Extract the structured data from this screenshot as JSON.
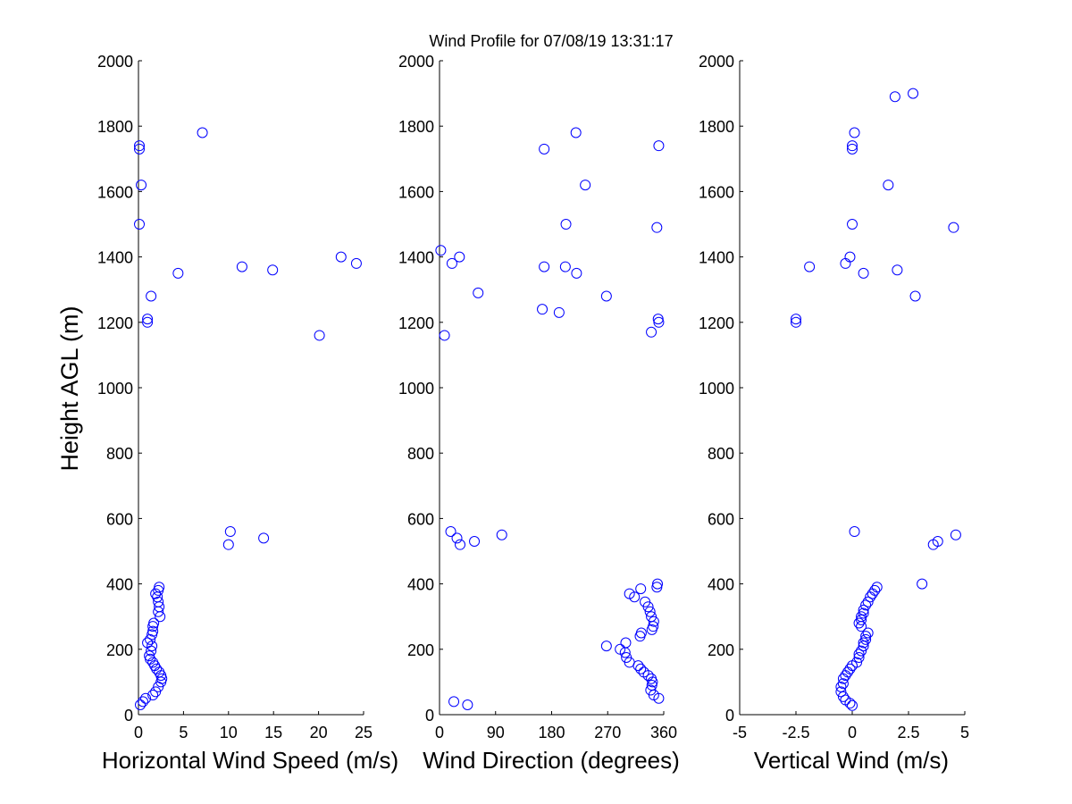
{
  "figure": {
    "title": "Wind Profile for  07/08/19 13:31:17",
    "ylabel": "Height AGL (m)",
    "marker_color": "#0000ff"
  },
  "chart_data": [
    {
      "type": "scatter",
      "xlabel": "Horizontal Wind Speed (m/s)",
      "ylabel": "Height AGL (m)",
      "xlim": [
        0,
        25
      ],
      "ylim": [
        0,
        2000
      ],
      "xticks": [
        "0",
        "5",
        "10",
        "15",
        "20",
        "25"
      ],
      "yticks": [
        "0",
        "200",
        "400",
        "600",
        "800",
        "1000",
        "1200",
        "1400",
        "1600",
        "1800",
        "2000"
      ],
      "series": [
        {
          "points": [
            [
              0.1,
              1740
            ],
            [
              0.1,
              1730
            ],
            [
              0.3,
              1620
            ],
            [
              0.1,
              1500
            ],
            [
              7.1,
              1780
            ],
            [
              11.5,
              1370
            ],
            [
              14.9,
              1360
            ],
            [
              22.5,
              1400
            ],
            [
              24.2,
              1380
            ],
            [
              4.4,
              1350
            ],
            [
              1.4,
              1280
            ],
            [
              1.0,
              1210
            ],
            [
              1.0,
              1200
            ],
            [
              20.1,
              1160
            ],
            [
              10.2,
              560
            ],
            [
              10.0,
              520
            ],
            [
              13.9,
              540
            ],
            [
              2.3,
              390
            ],
            [
              2.2,
              380
            ],
            [
              1.9,
              370
            ],
            [
              2.1,
              360
            ],
            [
              2.2,
              345
            ],
            [
              2.3,
              330
            ],
            [
              2.2,
              315
            ],
            [
              2.4,
              300
            ],
            [
              1.7,
              280
            ],
            [
              1.6,
              270
            ],
            [
              1.6,
              255
            ],
            [
              1.5,
              245
            ],
            [
              1.3,
              230
            ],
            [
              1.0,
              220
            ],
            [
              1.5,
              210
            ],
            [
              1.4,
              195
            ],
            [
              1.2,
              180
            ],
            [
              1.3,
              170
            ],
            [
              1.6,
              160
            ],
            [
              1.8,
              150
            ],
            [
              2.0,
              140
            ],
            [
              2.3,
              130
            ],
            [
              2.5,
              120
            ],
            [
              2.6,
              110
            ],
            [
              2.5,
              100
            ],
            [
              2.2,
              85
            ],
            [
              1.9,
              70
            ],
            [
              1.6,
              60
            ],
            [
              0.8,
              50
            ],
            [
              0.5,
              40
            ],
            [
              0.2,
              30
            ]
          ]
        }
      ]
    },
    {
      "type": "scatter",
      "xlabel": "Wind Direction (degrees)",
      "xlim": [
        0,
        360
      ],
      "ylim": [
        0,
        2000
      ],
      "xticks": [
        "0",
        "90",
        "180",
        "270",
        "360"
      ],
      "yticks": [
        "0",
        "200",
        "400",
        "600",
        "800",
        "1000",
        "1200",
        "1400",
        "1600",
        "1800",
        "2000"
      ],
      "series": [
        {
          "points": [
            [
              168,
              1730
            ],
            [
              352,
              1740
            ],
            [
              219,
              1780
            ],
            [
              234,
              1620
            ],
            [
              203,
              1500
            ],
            [
              349,
              1490
            ],
            [
              2,
              1420
            ],
            [
              20,
              1380
            ],
            [
              32,
              1400
            ],
            [
              168,
              1370
            ],
            [
              202,
              1370
            ],
            [
              220,
              1350
            ],
            [
              62,
              1290
            ],
            [
              268,
              1280
            ],
            [
              165,
              1240
            ],
            [
              192,
              1230
            ],
            [
              351,
              1210
            ],
            [
              352,
              1200
            ],
            [
              340,
              1170
            ],
            [
              8,
              1160
            ],
            [
              100,
              550
            ],
            [
              18,
              560
            ],
            [
              28,
              540
            ],
            [
              33,
              520
            ],
            [
              56,
              530
            ],
            [
              350,
              400
            ],
            [
              349,
              390
            ],
            [
              323,
              385
            ],
            [
              305,
              370
            ],
            [
              313,
              360
            ],
            [
              330,
              345
            ],
            [
              335,
              330
            ],
            [
              338,
              315
            ],
            [
              340,
              300
            ],
            [
              344,
              285
            ],
            [
              343,
              270
            ],
            [
              341,
              260
            ],
            [
              324,
              250
            ],
            [
              322,
              240
            ],
            [
              299,
              220
            ],
            [
              268,
              210
            ],
            [
              290,
              200
            ],
            [
              298,
              190
            ],
            [
              300,
              175
            ],
            [
              305,
              160
            ],
            [
              319,
              150
            ],
            [
              323,
              140
            ],
            [
              328,
              130
            ],
            [
              335,
              120
            ],
            [
              340,
              110
            ],
            [
              342,
              100
            ],
            [
              341,
              90
            ],
            [
              339,
              75
            ],
            [
              344,
              60
            ],
            [
              352,
              50
            ],
            [
              23,
              40
            ],
            [
              45,
              30
            ]
          ]
        }
      ]
    },
    {
      "type": "scatter",
      "xlabel": "Vertical Wind (m/s)",
      "xlim": [
        -5,
        5
      ],
      "ylim": [
        0,
        2000
      ],
      "xticks": [
        "-5",
        "-2.5",
        "0",
        "2.5",
        "5"
      ],
      "yticks": [
        "0",
        "200",
        "400",
        "600",
        "800",
        "1000",
        "1200",
        "1400",
        "1600",
        "1800",
        "2000"
      ],
      "series": [
        {
          "points": [
            [
              2.7,
              1900
            ],
            [
              1.9,
              1890
            ],
            [
              0.1,
              1780
            ],
            [
              0.0,
              1740
            ],
            [
              0.0,
              1730
            ],
            [
              1.6,
              1620
            ],
            [
              0.0,
              1500
            ],
            [
              4.5,
              1490
            ],
            [
              -1.9,
              1370
            ],
            [
              -0.3,
              1380
            ],
            [
              -0.1,
              1400
            ],
            [
              2.0,
              1360
            ],
            [
              0.5,
              1350
            ],
            [
              2.8,
              1280
            ],
            [
              -2.5,
              1210
            ],
            [
              -2.5,
              1200
            ],
            [
              4.6,
              550
            ],
            [
              0.1,
              560
            ],
            [
              3.8,
              530
            ],
            [
              3.6,
              520
            ],
            [
              3.1,
              400
            ],
            [
              1.1,
              390
            ],
            [
              1.0,
              380
            ],
            [
              0.9,
              370
            ],
            [
              0.8,
              360
            ],
            [
              0.7,
              345
            ],
            [
              0.6,
              335
            ],
            [
              0.5,
              320
            ],
            [
              0.5,
              310
            ],
            [
              0.4,
              300
            ],
            [
              0.4,
              290
            ],
            [
              0.3,
              280
            ],
            [
              0.4,
              270
            ],
            [
              0.7,
              250
            ],
            [
              0.6,
              240
            ],
            [
              0.6,
              230
            ],
            [
              0.5,
              220
            ],
            [
              0.5,
              210
            ],
            [
              0.4,
              195
            ],
            [
              0.3,
              185
            ],
            [
              0.3,
              175
            ],
            [
              0.2,
              160
            ],
            [
              0.0,
              150
            ],
            [
              -0.1,
              140
            ],
            [
              -0.2,
              130
            ],
            [
              -0.3,
              120
            ],
            [
              -0.4,
              110
            ],
            [
              -0.4,
              95
            ],
            [
              -0.5,
              85
            ],
            [
              -0.5,
              70
            ],
            [
              -0.4,
              55
            ],
            [
              -0.3,
              45
            ],
            [
              -0.1,
              35
            ],
            [
              0.0,
              28
            ]
          ]
        }
      ]
    }
  ]
}
